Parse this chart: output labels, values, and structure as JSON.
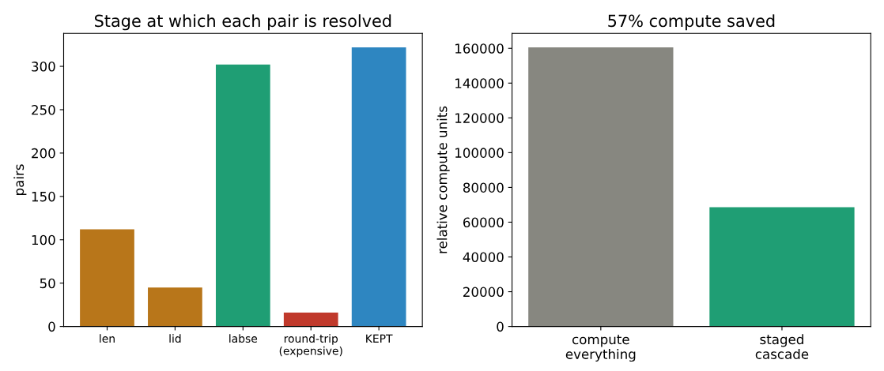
{
  "chart_data": [
    {
      "type": "bar",
      "title": "Stage at which each pair is resolved",
      "ylabel": "pairs",
      "categories": [
        "len",
        "lid",
        "labse",
        "round-trip\n(expensive)",
        "KEPT"
      ],
      "values": [
        112,
        45,
        302,
        16,
        322
      ],
      "colors": [
        "#b8761a",
        "#b8761a",
        "#1f9e74",
        "#c0392b",
        "#2e86c1"
      ],
      "ylim": [
        0,
        338
      ],
      "yticks": [
        0,
        50,
        100,
        150,
        200,
        250,
        300
      ],
      "grid": false,
      "legend": false
    },
    {
      "type": "bar",
      "title": "57% compute saved",
      "ylabel": "relative compute units",
      "categories": [
        "compute\neverything",
        "staged\ncascade"
      ],
      "values": [
        160600,
        68600
      ],
      "colors": [
        "#878780",
        "#1f9e74"
      ],
      "ylim": [
        0,
        168600
      ],
      "yticks": [
        0,
        20000,
        40000,
        60000,
        80000,
        100000,
        120000,
        140000,
        160000
      ],
      "grid": false,
      "legend": false
    }
  ]
}
